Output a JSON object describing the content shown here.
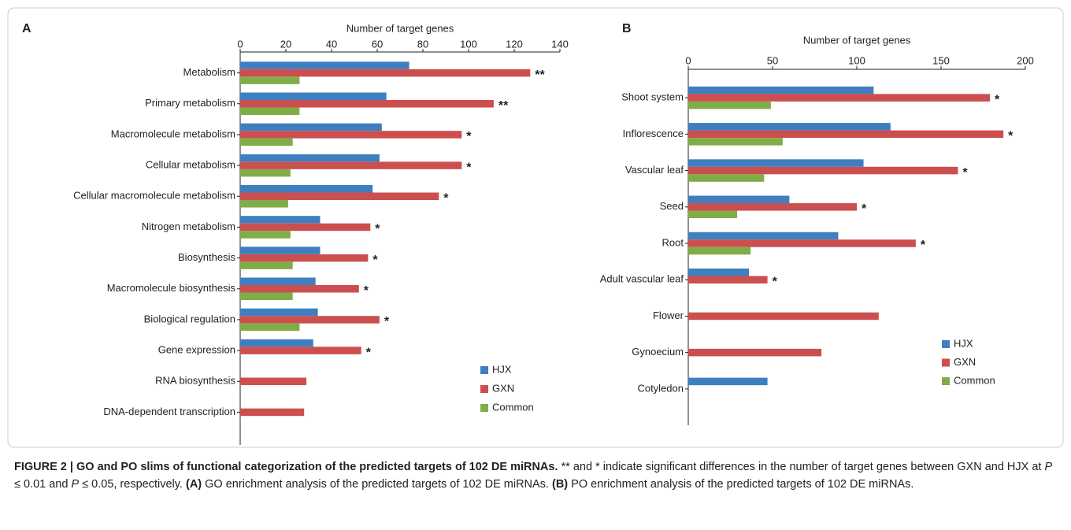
{
  "chart_data": [
    {
      "type": "bar",
      "orientation": "horizontal",
      "panel": "A",
      "xlabel": "Number of target genes",
      "categories": [
        "Metabolism",
        "Primary metabolism",
        "Macromolecule metabolism",
        "Cellular metabolism",
        "Cellular macromolecule metabolism",
        "Nitrogen metabolism",
        "Biosynthesis",
        "Macromolecule biosynthesis",
        "Biological regulation",
        "Gene expression",
        "RNA biosynthesis",
        "DNA-dependent transcription"
      ],
      "series": [
        {
          "name": "HJX",
          "color": "#3f7fc0",
          "values": [
            74,
            64,
            62,
            61,
            58,
            35,
            35,
            33,
            34,
            32,
            null,
            null
          ]
        },
        {
          "name": "GXN",
          "color": "#cc4f50",
          "values": [
            127,
            111,
            97,
            97,
            87,
            57,
            56,
            52,
            61,
            53,
            29,
            28
          ]
        },
        {
          "name": "Common",
          "color": "#80ad47",
          "values": [
            26,
            26,
            23,
            22,
            21,
            22,
            23,
            23,
            26,
            null,
            null,
            null
          ]
        }
      ],
      "annotations": [
        "**",
        "**",
        "*",
        "*",
        "*",
        "*",
        "*",
        "*",
        "*",
        "*",
        null,
        null
      ],
      "xlim": [
        0,
        140
      ],
      "xticks": [
        0,
        20,
        40,
        60,
        80,
        100,
        120,
        140
      ],
      "legend": "lower right"
    },
    {
      "type": "bar",
      "orientation": "horizontal",
      "panel": "B",
      "xlabel": "Number of target genes",
      "categories": [
        "Shoot system",
        "Inflorescence",
        "Vascular leaf",
        "Seed",
        "Root",
        "Adult vascular leaf",
        "Flower",
        "Gynoecium",
        "Cotyledon"
      ],
      "series": [
        {
          "name": "HJX",
          "color": "#3f7fc0",
          "values": [
            110,
            120,
            104,
            60,
            89,
            36,
            null,
            null,
            47
          ]
        },
        {
          "name": "GXN",
          "color": "#cc4f50",
          "values": [
            179,
            187,
            160,
            100,
            135,
            47,
            113,
            79,
            null
          ]
        },
        {
          "name": "Common",
          "color": "#80ad47",
          "values": [
            49,
            56,
            45,
            29,
            37,
            null,
            null,
            null,
            null
          ]
        }
      ],
      "annotations": [
        "*",
        "*",
        "*",
        "*",
        "*",
        "*",
        null,
        null,
        null
      ],
      "xlim": [
        0,
        200
      ],
      "xticks": [
        0,
        50,
        100,
        150,
        200
      ],
      "legend": "lower right"
    }
  ],
  "caption": {
    "title": "FIGURE 2 | GO and PO slims of functional categorization of the predicted targets of 102 DE miRNAs.",
    "text1": " ** and * indicate significant differences in the number of target genes between GXN and HJX at ",
    "p1": "P",
    "text2": " ≤ 0.01 and ",
    "p2": "P",
    "text3": " ≤ 0.05, respectively. ",
    "panel_a": "(A)",
    "text_a": " GO enrichment analysis of the predicted targets of 102 DE miRNAs. ",
    "panel_b": "(B)",
    "text_b": " PO enrichment analysis of the predicted targets of 102 DE miRNAs."
  }
}
